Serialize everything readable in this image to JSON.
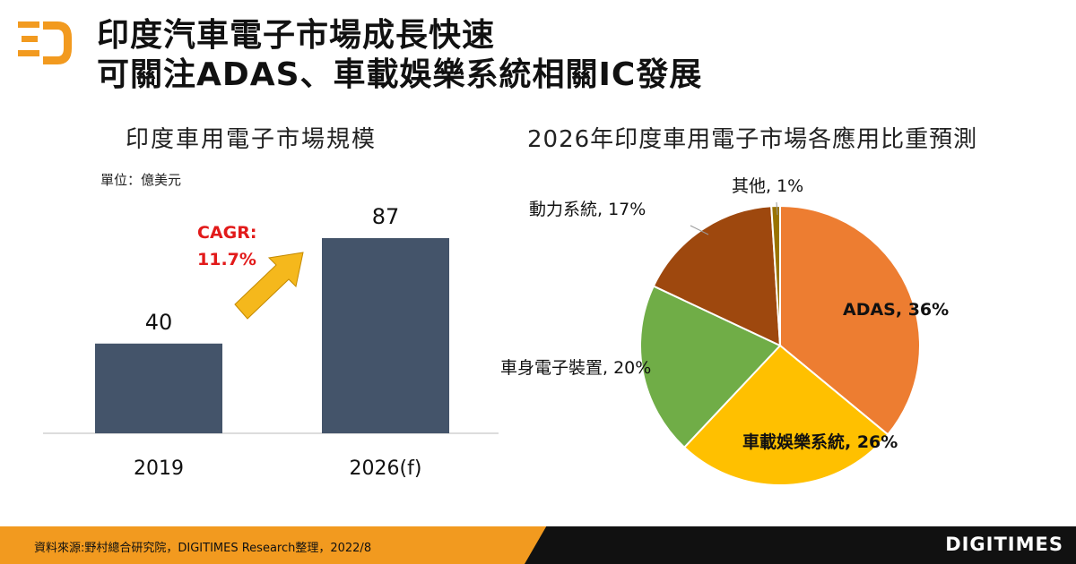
{
  "header": {
    "title_line1": "印度汽車電子市場成長快速",
    "title_line2": "可關注ADAS、車載娛樂系統相關IC發展"
  },
  "colors": {
    "accent_orange": "#f29a1f",
    "bar_fill": "#44546a",
    "cagr_red": "#e21a1a",
    "arrow_yellow": "#f5b81c"
  },
  "chart_data": [
    {
      "type": "bar",
      "title": "印度車用電子市場規模",
      "unit_label": "單位：億美元",
      "categories": [
        "2019",
        "2026(f)"
      ],
      "values": [
        40,
        87
      ],
      "value_labels": [
        "40",
        "87"
      ],
      "annotation": {
        "line1": "CAGR:",
        "line2": "11.7%"
      },
      "ylim": [
        0,
        100
      ],
      "grid": false
    },
    {
      "type": "pie",
      "title": "2026年印度車用電子市場各應用比重預測",
      "slices": [
        {
          "label": "ADAS, 36%",
          "value": 36,
          "color": "#ed7d31"
        },
        {
          "label": "車載娛樂系統, 26%",
          "value": 26,
          "color": "#ffc000"
        },
        {
          "label": "車身電子裝置, 20%",
          "value": 20,
          "color": "#70ad47"
        },
        {
          "label": "動力系統, 17%",
          "value": 17,
          "color": "#9e480e"
        },
        {
          "label": "其他, 1%",
          "value": 1,
          "color": "#997300"
        }
      ]
    }
  ],
  "footer": {
    "source": "資料來源:野村總合研究院，DIGITIMES Research整理，2022/8",
    "brand": "DIGITIMES"
  }
}
